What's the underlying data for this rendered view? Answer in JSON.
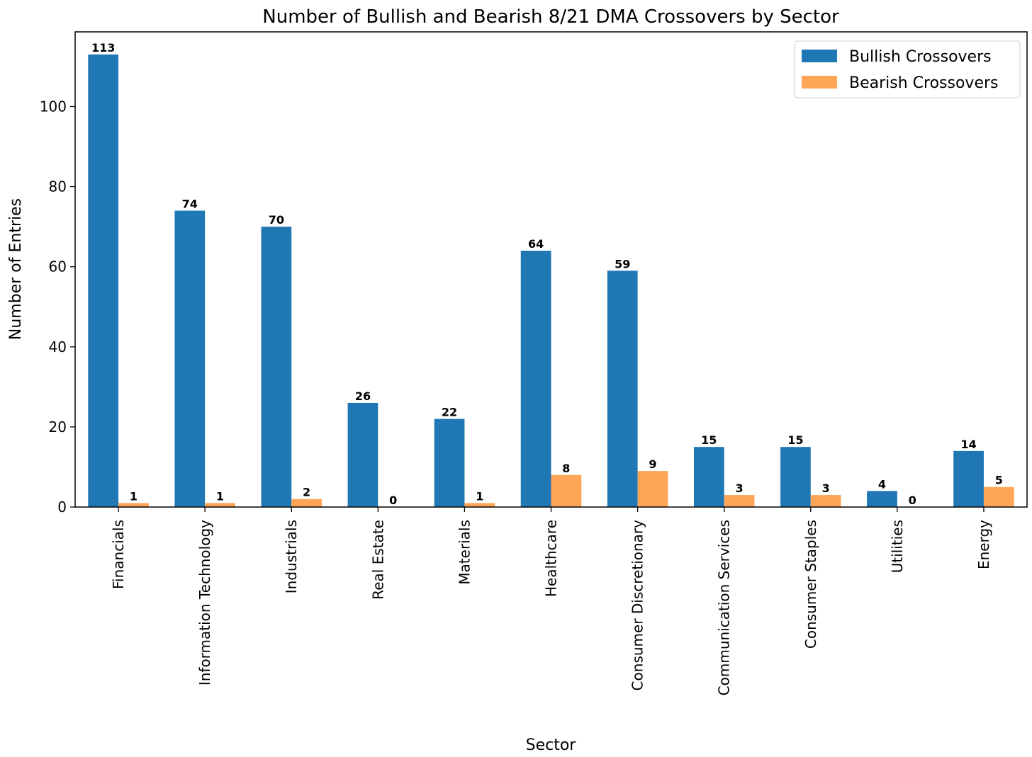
{
  "chart_data": {
    "type": "bar",
    "title": "Number of Bullish and Bearish 8/21 DMA Crossovers by Sector",
    "xlabel": "Sector",
    "ylabel": "Number of Entries",
    "ylim": [
      0,
      118.65
    ],
    "yticks": [
      0,
      20,
      40,
      60,
      80,
      100
    ],
    "categories": [
      "Financials",
      "Information Technology",
      "Industrials",
      "Real Estate",
      "Materials",
      "Healthcare",
      "Consumer Discretionary",
      "Communication Services",
      "Consumer Staples",
      "Utilities",
      "Energy"
    ],
    "series": [
      {
        "name": "Bullish Crossovers",
        "color": "#1f77b4",
        "values": [
          113,
          74,
          70,
          26,
          22,
          64,
          59,
          15,
          15,
          4,
          14
        ]
      },
      {
        "name": "Bearish Crossovers",
        "color": "#ffa556",
        "values": [
          1,
          1,
          2,
          0,
          1,
          8,
          9,
          3,
          3,
          0,
          5
        ]
      }
    ],
    "legend": "top-right",
    "grid": false
  }
}
